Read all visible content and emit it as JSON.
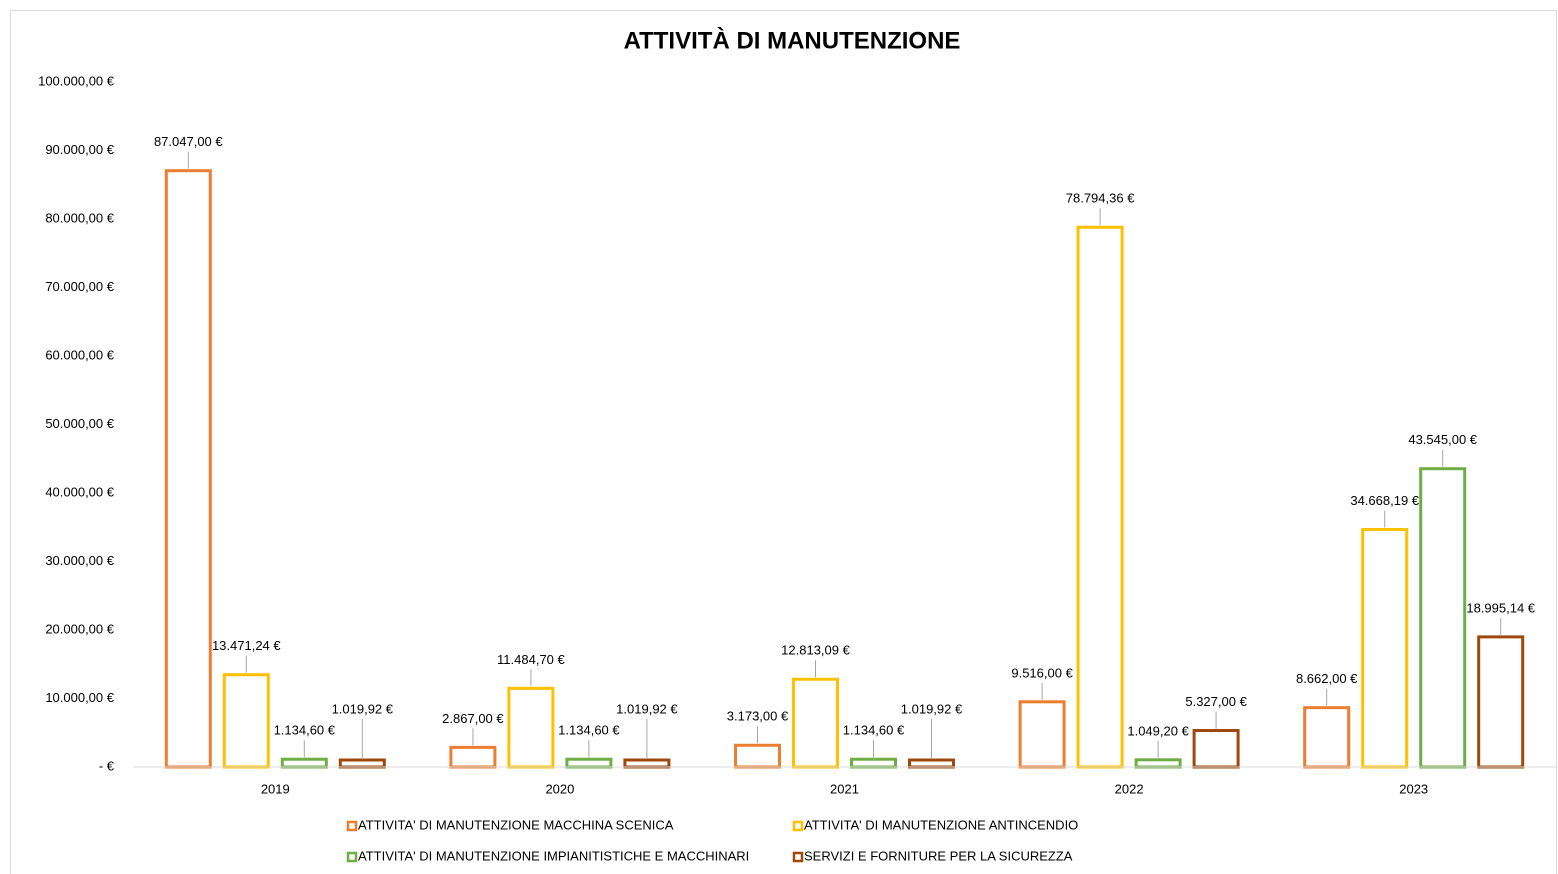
{
  "chart_data": {
    "type": "bar",
    "title": "ATTIVITÀ DI MANUTENZIONE",
    "categories": [
      "2019",
      "2020",
      "2021",
      "2022",
      "2023"
    ],
    "series": [
      {
        "name": "ATTIVITA' DI MANUTENZIONE MACCHINA SCENICA",
        "color": "#ED7D31",
        "values": [
          87047,
          2867,
          3173,
          9516,
          8662
        ],
        "value_labels": [
          "87.047,00 €",
          "2.867,00 €",
          "3.173,00 €",
          "9.516,00 €",
          "8.662,00 €"
        ]
      },
      {
        "name": "ATTIVITA' DI MANUTENZIONE ANTINCENDIO",
        "color": "#FFC000",
        "values": [
          13471.24,
          11484.7,
          12813.09,
          78794.36,
          34668.19
        ],
        "value_labels": [
          "13.471,24 €",
          "11.484,70 €",
          "12.813,09 €",
          "78.794,36 €",
          "34.668,19 €"
        ]
      },
      {
        "name": "ATTIVITA' DI MANUTENZIONE IMPIANITISTICHE E MACCHINARI",
        "color": "#70AD47",
        "values": [
          1134.6,
          1134.6,
          1134.6,
          1049.2,
          43545
        ],
        "value_labels": [
          "1.134,60 €",
          "1.134,60 €",
          "1.134,60 €",
          "1.049,20 €",
          "43.545,00 €"
        ]
      },
      {
        "name": "SERVIZI E FORNITURE PER LA SICUREZZA",
        "color": "#9E480E",
        "values": [
          1019.92,
          1019.92,
          1019.92,
          5327,
          18995.14
        ],
        "value_labels": [
          "1.019,92 €",
          "1.019,92 €",
          "1.019,92 €",
          "5.327,00 €",
          "18.995,14 €"
        ]
      }
    ],
    "ylim": [
      0,
      100000
    ],
    "yticks": [
      {
        "value": 0,
        "label": "-   €"
      },
      {
        "value": 10000,
        "label": "10.000,00 €"
      },
      {
        "value": 20000,
        "label": "20.000,00 €"
      },
      {
        "value": 30000,
        "label": "30.000,00 €"
      },
      {
        "value": 40000,
        "label": "40.000,00 €"
      },
      {
        "value": 50000,
        "label": "50.000,00 €"
      },
      {
        "value": 60000,
        "label": "60.000,00 €"
      },
      {
        "value": 70000,
        "label": "70.000,00 €"
      },
      {
        "value": 80000,
        "label": "80.000,00 €"
      },
      {
        "value": 90000,
        "label": "90.000,00 €"
      },
      {
        "value": 100000,
        "label": "100.000,00 €"
      }
    ],
    "grid": false,
    "legend": "bottom"
  }
}
